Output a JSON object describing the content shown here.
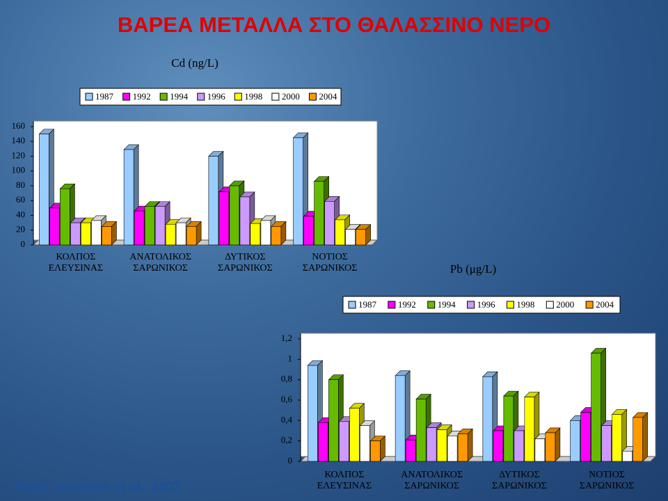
{
  "title": "ΒΑΡΕΑ ΜΕΤΑΛΛΑ ΣΤΟ ΘΑΛΑΣΣΙΝΟ ΝΕΡΟ",
  "source": "Πηγή: Scoullos et al., 2007",
  "chart_data": [
    {
      "type": "bar",
      "title": "Cd (ng/L)",
      "categories": [
        "ΚΟΛΠΟΣ\nΕΛΕΥΣΙΝΑΣ",
        "ΑΝΑΤΟΛΙΚΟΣ\nΣΑΡΩΝΙΚΟΣ",
        "ΔΥΤΙΚΟΣ\nΣΑΡΩΝΙΚΟΣ",
        "ΝΟΤΙΟΣ\nΣΑΡΩΝΙΚΟΣ"
      ],
      "series": [
        {
          "name": "1987",
          "color": "#99ccff",
          "values": [
            150,
            129,
            120,
            145
          ]
        },
        {
          "name": "1992",
          "color": "#ff00ff",
          "values": [
            50,
            46,
            72,
            39
          ]
        },
        {
          "name": "1994",
          "color": "#66bb00",
          "values": [
            76,
            52,
            80,
            86
          ]
        },
        {
          "name": "1996",
          "color": "#cc99ff",
          "values": [
            30,
            52,
            65,
            59
          ]
        },
        {
          "name": "1998",
          "color": "#ffff00",
          "values": [
            30,
            28,
            29,
            34
          ]
        },
        {
          "name": "2000",
          "color": "#ffffff",
          "values": [
            33,
            30,
            33,
            21
          ]
        },
        {
          "name": "2004",
          "color": "#ff9900",
          "values": [
            25,
            25,
            25,
            21
          ]
        }
      ],
      "ylim": [
        0,
        160
      ],
      "yticks": [
        0,
        20,
        40,
        60,
        80,
        100,
        120,
        140,
        160
      ]
    },
    {
      "type": "bar",
      "title": "Pb (μg/L)",
      "categories": [
        "ΚΟΛΠΟΣ\nΕΛΕΥΣΙΝΑΣ",
        "ΑΝΑΤΟΛΙΚΟΣ\nΣΑΡΩΝΙΚΟΣ",
        "ΔΥΤΙΚΟΣ\nΣΑΡΩΝΙΚΟΣ",
        "ΝΟΤΙΟΣ\nΣΑΡΩΝΙΚΟΣ"
      ],
      "series": [
        {
          "name": "1987",
          "color": "#99ccff",
          "values": [
            0.94,
            0.84,
            0.83,
            0.4
          ]
        },
        {
          "name": "1992",
          "color": "#ff00ff",
          "values": [
            0.38,
            0.21,
            0.3,
            0.48
          ]
        },
        {
          "name": "1994",
          "color": "#66bb00",
          "values": [
            0.8,
            0.61,
            0.64,
            1.06
          ]
        },
        {
          "name": "1996",
          "color": "#cc99ff",
          "values": [
            0.39,
            0.33,
            0.3,
            0.35
          ]
        },
        {
          "name": "1998",
          "color": "#ffff00",
          "values": [
            0.52,
            0.31,
            0.63,
            0.46
          ]
        },
        {
          "name": "2000",
          "color": "#ffffff",
          "values": [
            0.35,
            0.25,
            0.22,
            0.1
          ]
        },
        {
          "name": "2004",
          "color": "#ff9900",
          "values": [
            0.2,
            0.27,
            0.28,
            0.43
          ]
        }
      ],
      "ylim": [
        0,
        1.2
      ],
      "yticks": [
        0,
        {
          "value": 0.2,
          "label": "0,2"
        },
        {
          "value": 0.4,
          "label": "0,4"
        },
        {
          "value": 0.6,
          "label": "0,6"
        },
        {
          "value": 0.8,
          "label": "0,8"
        },
        1,
        {
          "value": 1.2,
          "label": "1,2"
        }
      ]
    }
  ]
}
